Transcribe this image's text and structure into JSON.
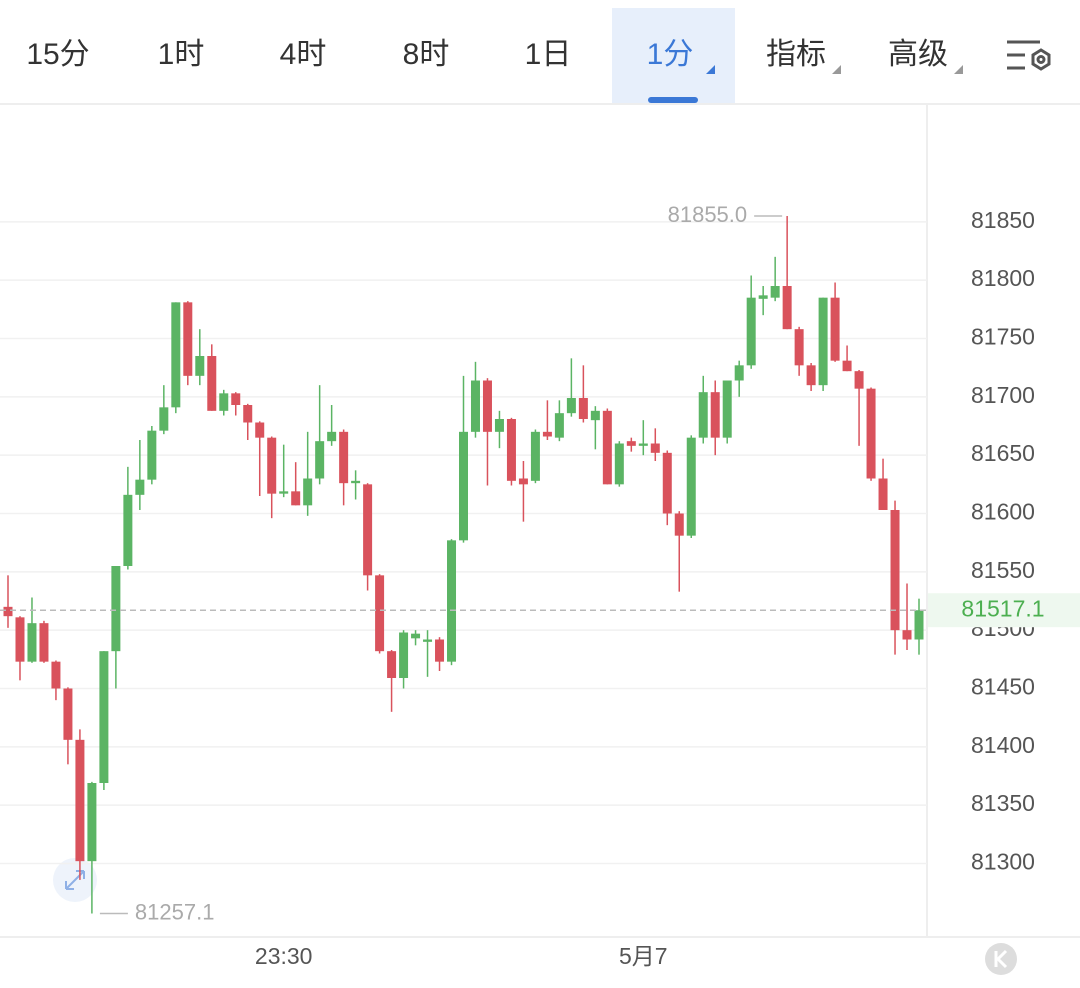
{
  "ui": {
    "tabs": [
      "15分",
      "1时",
      "4时",
      "8时",
      "1日",
      "1分",
      "指标",
      "高级"
    ],
    "selected_tab": 5
  },
  "chart_data": {
    "type": "candlestick",
    "categories": [
      null,
      null,
      null,
      null,
      null,
      null,
      null,
      null,
      null,
      null,
      null,
      null,
      null,
      null,
      null,
      null,
      null,
      null,
      null,
      null,
      null,
      null,
      null,
      "23:30",
      null,
      null,
      null,
      null,
      null,
      null,
      null,
      null,
      null,
      null,
      null,
      null,
      null,
      null,
      null,
      null,
      null,
      null,
      null,
      null,
      null,
      null,
      null,
      null,
      null,
      null,
      null,
      null,
      null,
      "5月7",
      null,
      null,
      null,
      null,
      null,
      null,
      null,
      null,
      null,
      null,
      null,
      null,
      null,
      null,
      null,
      null,
      null,
      null,
      null,
      null,
      null,
      null,
      null
    ],
    "open": [
      81520,
      81511,
      81473,
      81506,
      81473,
      81450,
      81406,
      81302,
      81369,
      81482,
      81555,
      81616,
      81629,
      81671,
      81691,
      81781,
      81718,
      81735,
      81688,
      81703,
      81693,
      81678,
      81665,
      81617,
      81619,
      81607,
      81630,
      81662,
      81670,
      81626,
      81625,
      81547,
      81482,
      81459,
      81493,
      81490,
      81492,
      81473,
      81577,
      81670,
      81714,
      81670,
      81681,
      81630,
      81628,
      81670,
      81665,
      81686,
      81699,
      81680,
      81688,
      81625,
      81662,
      81658,
      81660,
      81652,
      81600,
      81581,
      81665,
      81704,
      81665,
      81714,
      81727,
      81784,
      81785,
      81795,
      81758,
      81727,
      81710,
      81785,
      81731,
      81722,
      81707,
      81630,
      81603,
      81500,
      81492
    ],
    "high": [
      81547,
      81512,
      81528,
      81508,
      81474,
      81451,
      81415,
      81370,
      81482,
      81555,
      81640,
      81663,
      81675,
      81710,
      81781,
      81782,
      81758,
      81745,
      81706,
      81704,
      81694,
      81679,
      81666,
      81659,
      81644,
      81670,
      81710,
      81693,
      81672,
      81637,
      81626,
      81548,
      81483,
      81500,
      81500,
      81500,
      81494,
      81578,
      81718,
      81730,
      81716,
      81688,
      81682,
      81645,
      81672,
      81697,
      81697,
      81733,
      81727,
      81692,
      81690,
      81662,
      81665,
      81680,
      81673,
      81654,
      81602,
      81667,
      81718,
      81714,
      81714,
      81731,
      81804,
      81795,
      81820,
      81855,
      81760,
      81729,
      81785,
      81798,
      81744,
      81723,
      81708,
      81647,
      81611,
      81540,
      81527
    ],
    "low": [
      81502,
      81457,
      81472,
      81472,
      81440,
      81385,
      81286,
      81257.1,
      81363,
      81450,
      81552,
      81603,
      81625,
      81668,
      81686,
      81710,
      81710,
      81688,
      81684,
      81684,
      81663,
      81615,
      81596,
      81614,
      81607,
      81598,
      81625,
      81658,
      81607,
      81612,
      81534,
      81480,
      81430,
      81450,
      81487,
      81460,
      81465,
      81470,
      81575,
      81665,
      81624,
      81656,
      81624,
      81593,
      81626,
      81663,
      81662,
      81683,
      81678,
      81655,
      81625,
      81623,
      81653,
      81650,
      81645,
      81590,
      81533,
      81579,
      81660,
      81650,
      81660,
      81700,
      81724,
      81770,
      81782,
      81758,
      81718,
      81705,
      81705,
      81730,
      81722,
      81658,
      81628,
      81603,
      81479,
      81483,
      81479
    ],
    "close": [
      81512,
      81473,
      81506,
      81473,
      81450,
      81406,
      81302,
      81369,
      81482,
      81555,
      81616,
      81629,
      81671,
      81691,
      81781,
      81718,
      81735,
      81688,
      81703,
      81693,
      81678,
      81665,
      81617,
      81619,
      81607,
      81630,
      81662,
      81670,
      81626,
      81628,
      81547,
      81482,
      81459,
      81498,
      81497,
      81492,
      81473,
      81577,
      81670,
      81714,
      81670,
      81681,
      81628,
      81625,
      81670,
      81666,
      81686,
      81699,
      81681,
      81688,
      81625,
      81660,
      81658,
      81660,
      81652,
      81600,
      81581,
      81665,
      81704,
      81665,
      81714,
      81727,
      81785,
      81787,
      81795,
      81758,
      81727,
      81710,
      81785,
      81731,
      81722,
      81707,
      81630,
      81603,
      81500,
      81492,
      81517.1
    ],
    "up_color": "#5bb464",
    "down_color": "#d9525c",
    "ylim": [
      81237,
      81951
    ],
    "yticks": [
      81300,
      81350,
      81400,
      81450,
      81500,
      81550,
      81600,
      81650,
      81700,
      81750,
      81800,
      81850
    ],
    "grid": true,
    "annotations": [
      {
        "value": 81855,
        "label": "81855.0"
      },
      {
        "value": 81257.1,
        "label": "81257.1"
      }
    ],
    "last_price": {
      "value": 81517.1,
      "label": "81517.1"
    }
  }
}
